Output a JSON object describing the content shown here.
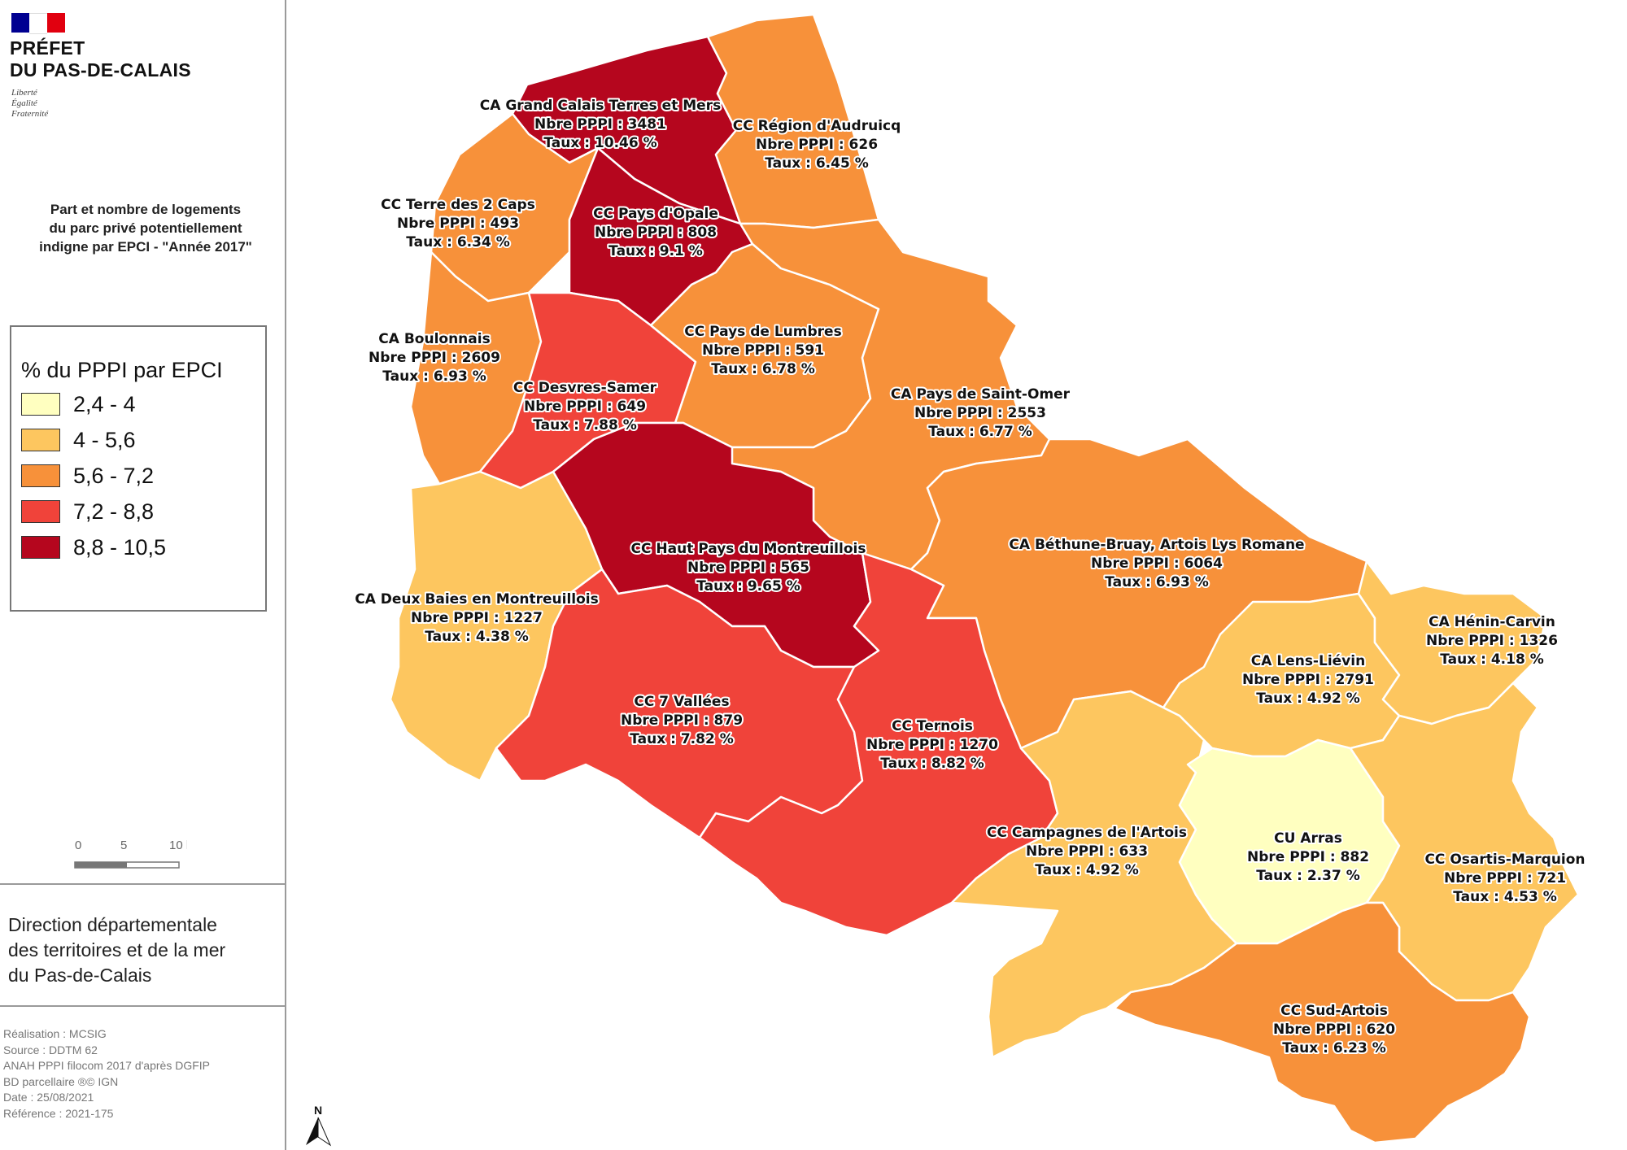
{
  "header": {
    "flag_colors": [
      "#000091",
      "#ffffff",
      "#e1000f"
    ],
    "title_line1": "PRÉFET",
    "title_line2": "DU PAS-DE-CALAIS",
    "motto": [
      "Liberté",
      "Égalité",
      "Fraternité"
    ]
  },
  "map_title": {
    "line1": "Part et nombre de logements",
    "line2": "du parc privé potentiellement",
    "line3": "indigne par EPCI - \"Année 2017\""
  },
  "legend": {
    "title": "% du PPPI par EPCI",
    "classes": [
      {
        "label": "2,4 - 4",
        "color": "#ffffc0"
      },
      {
        "label": "4 - 5,6",
        "color": "#fdc65f"
      },
      {
        "label": "5,6 - 7,2",
        "color": "#f7913a"
      },
      {
        "label": "7,2 - 8,8",
        "color": "#f0433a"
      },
      {
        "label": "8,8 - 10,5",
        "color": "#b5061e"
      }
    ]
  },
  "scale": {
    "t0": "0",
    "t1": "5",
    "t2": "10 km"
  },
  "north": "N",
  "direction": {
    "line1": "Direction départementale",
    "line2": "des territoires et de la mer",
    "line3": "du Pas-de-Calais"
  },
  "credits": [
    "Réalisation : MCSIG",
    "Source : DDTM 62",
    "ANAH PPPI filocom 2017 d'après DGFIP",
    "BD parcellaire ®© IGN",
    "Date : 25/08/2021",
    "Référence : 2021-175"
  ],
  "epci": [
    {
      "name": "CA Grand Calais Terres et Mers",
      "nbre": "Nbre PPPI : 3481",
      "taux": "Taux : 10.46 %"
    },
    {
      "name": "CC Région d'Audruicq",
      "nbre": "Nbre PPPI : 626",
      "taux": "Taux : 6.45 %"
    },
    {
      "name": "CC Terre des 2 Caps",
      "nbre": "Nbre PPPI : 493",
      "taux": "Taux : 6.34 %"
    },
    {
      "name": "CC Pays d'Opale",
      "nbre": "Nbre PPPI : 808",
      "taux": "Taux : 9.1 %"
    },
    {
      "name": "CA Boulonnais",
      "nbre": "Nbre PPPI : 2609",
      "taux": "Taux : 6.93 %"
    },
    {
      "name": "CC Pays de Lumbres",
      "nbre": "Nbre PPPI : 591",
      "taux": "Taux : 6.78 %"
    },
    {
      "name": "CC Desvres-Samer",
      "nbre": "Nbre PPPI : 649",
      "taux": "Taux : 7.88 %"
    },
    {
      "name": "CA Pays de Saint-Omer",
      "nbre": "Nbre PPPI : 2553",
      "taux": "Taux : 6.77 %"
    },
    {
      "name": "CC Haut Pays du Montreuillois",
      "nbre": "Nbre PPPI : 565",
      "taux": "Taux : 9.65 %"
    },
    {
      "name": "CA Béthune-Bruay, Artois Lys Romane",
      "nbre": "Nbre PPPI : 6064",
      "taux": "Taux : 6.93 %"
    },
    {
      "name": "CA Deux Baies en Montreuillois",
      "nbre": "Nbre PPPI : 1227",
      "taux": "Taux : 4.38 %"
    },
    {
      "name": "CA Hénin-Carvin",
      "nbre": "Nbre PPPI : 1326",
      "taux": "Taux : 4.18 %"
    },
    {
      "name": "CA Lens-Liévin",
      "nbre": "Nbre PPPI : 2791",
      "taux": "Taux : 4.92 %"
    },
    {
      "name": "CC 7 Vallées",
      "nbre": "Nbre PPPI : 879",
      "taux": "Taux : 7.82 %"
    },
    {
      "name": "CC Ternois",
      "nbre": "Nbre PPPI : 1270",
      "taux": "Taux : 8.82 %"
    },
    {
      "name": "CC Campagnes de l'Artois",
      "nbre": "Nbre PPPI : 633",
      "taux": "Taux : 4.92 %"
    },
    {
      "name": "CU Arras",
      "nbre": "Nbre PPPI : 882",
      "taux": "Taux : 2.37 %"
    },
    {
      "name": "CC Osartis-Marquion",
      "nbre": "Nbre PPPI : 721",
      "taux": "Taux : 4.53 %"
    },
    {
      "name": "CC Sud-Artois",
      "nbre": "Nbre PPPI : 620",
      "taux": "Taux : 6.23 %"
    }
  ]
}
